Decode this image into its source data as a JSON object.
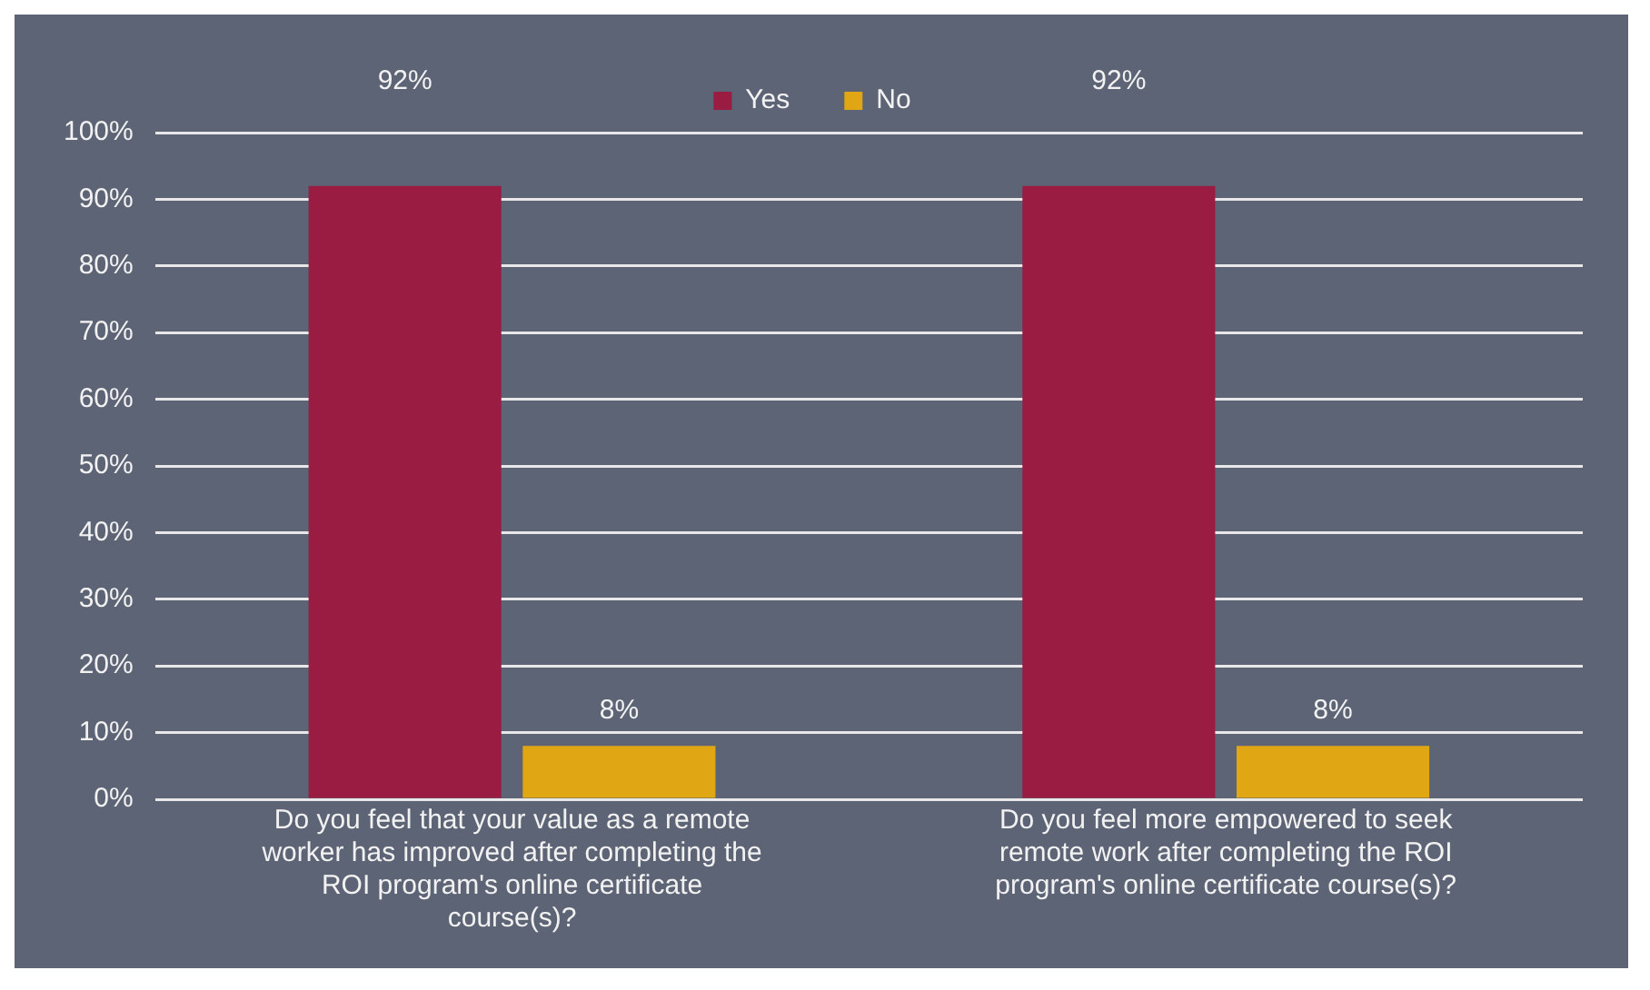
{
  "chart_data": {
    "type": "bar",
    "categories": [
      "Do you feel that your value as a remote worker has improved after completing the ROI program's online certificate course(s)?",
      "Do you feel more empowered to seek remote work after completing the ROI program's online certificate course(s)?"
    ],
    "series": [
      {
        "name": "Yes",
        "color": "#9b1c43",
        "values": [
          92,
          92
        ],
        "value_labels": [
          "92%",
          "92%"
        ]
      },
      {
        "name": "No",
        "color": "#e0a614",
        "values": [
          8,
          8
        ],
        "value_labels": [
          "8%",
          "8%"
        ]
      }
    ],
    "ylim": [
      0,
      100
    ],
    "yticks": [
      {
        "value": 0,
        "label": "0%"
      },
      {
        "value": 10,
        "label": "10%"
      },
      {
        "value": 20,
        "label": "20%"
      },
      {
        "value": 30,
        "label": "30%"
      },
      {
        "value": 40,
        "label": "40%"
      },
      {
        "value": 50,
        "label": "50%"
      },
      {
        "value": 60,
        "label": "60%"
      },
      {
        "value": 70,
        "label": "70%"
      },
      {
        "value": 80,
        "label": "80%"
      },
      {
        "value": 90,
        "label": "90%"
      },
      {
        "value": 100,
        "label": "100%"
      }
    ],
    "grid": "y",
    "legend": "top"
  }
}
